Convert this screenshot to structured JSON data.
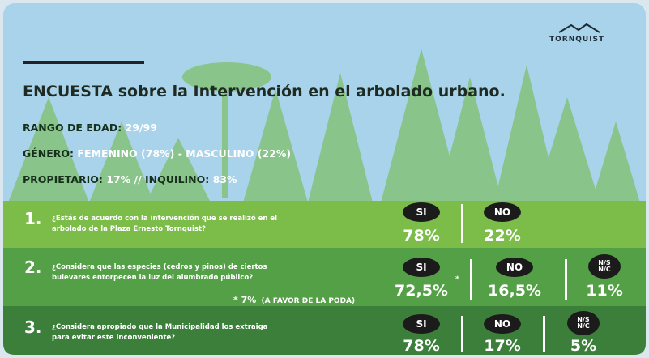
{
  "logo": "TORNQUIST",
  "title": [
    "ENCUESTA",
    "sobre la Intervención en el arbolado urbano."
  ],
  "demographics": [
    [
      "RANGO DE EDAD:",
      "29/99"
    ],
    [
      "GÉNERO:",
      "FEMENINO (78%)  -  MASCULINO (22%)"
    ],
    [
      "PROPIETARIO:",
      "17%  //",
      "INQUILINO:",
      "83%"
    ]
  ],
  "questions": [
    {
      "number": "1.",
      "lines": [
        "¿Estás de acuerdo con la intervención que se realizó en el",
        "arbolado de la Plaza Ernesto Tornquist?"
      ],
      "answers": [
        {
          "label": "SI",
          "value": "78%"
        },
        {
          "label": "NO",
          "value": "22%"
        }
      ]
    },
    {
      "number": "2.",
      "lines": [
        "¿Considera que las especies (cedros y pinos) de ciertos",
        "bulevares entorpecen la luz del alumbrado público?"
      ],
      "note": [
        "* 7%",
        "(A FAVOR DE LA PODA)"
      ],
      "asterisk": "*",
      "answers": [
        {
          "label": "SI",
          "value": "72,5%"
        },
        {
          "label": "NO",
          "value": "16,5%"
        },
        {
          "label": "N/S N/C",
          "value": "11%"
        }
      ]
    },
    {
      "number": "3.",
      "lines": [
        "¿Considera apropiado que la Municipalidad los extraiga",
        "para evitar este inconveniente?"
      ],
      "answers": [
        {
          "label": "SI",
          "value": "78%"
        },
        {
          "label": "NO",
          "value": "17%"
        },
        {
          "label": "N/S N/C",
          "value": "5%"
        }
      ]
    }
  ]
}
